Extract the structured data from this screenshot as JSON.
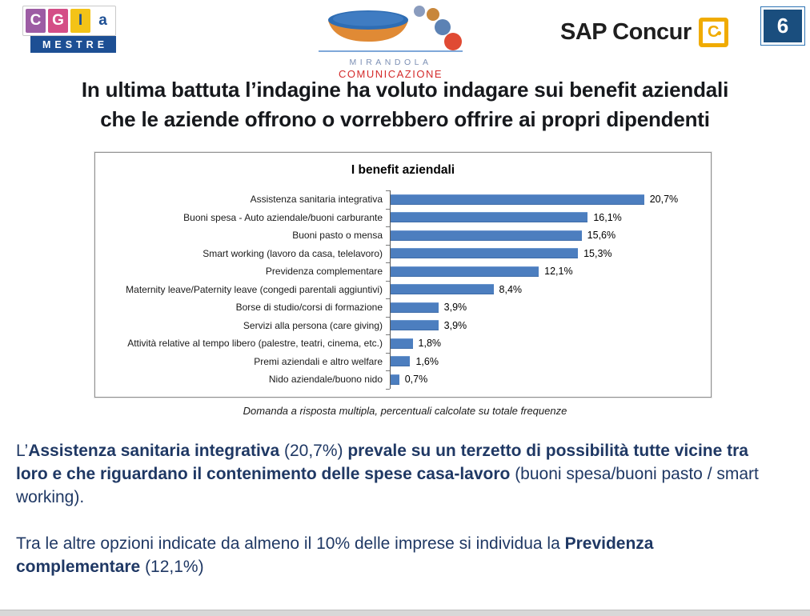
{
  "page": {
    "number": "6"
  },
  "header": {
    "cgia": {
      "letters": [
        {
          "char": "C",
          "bg": "#9d5ca4",
          "fg": "#ffffff"
        },
        {
          "char": "G",
          "bg": "#d44e87",
          "fg": "#ffffff"
        },
        {
          "char": "I",
          "bg": "#f3c317",
          "fg": "#1d4f94"
        },
        {
          "char": "a",
          "bg": "#ffffff",
          "fg": "#1d4f94"
        }
      ],
      "sub": "MESTRE"
    },
    "mirandola": {
      "line1": "MIRANDOLA",
      "line2": "COMUNICAZIONE"
    },
    "sap": {
      "text": "SAP Concur",
      "icon_letter": "C"
    }
  },
  "title": "In ultima battuta l’indagine ha voluto indagare sui benefit aziendali\nche le aziende offrono o vorrebbero offrire ai propri dipendenti",
  "chart_data": {
    "type": "bar",
    "orientation": "horizontal",
    "title": "I benefit aziendali",
    "categories": [
      "Assistenza sanitaria integrativa",
      "Buoni spesa - Auto aziendale/buoni carburante",
      "Buoni pasto o mensa",
      "Smart working (lavoro da casa, telelavoro)",
      "Previdenza complementare",
      "Maternity leave/Paternity leave (congedi parentali aggiuntivi)",
      "Borse di studio/corsi di formazione",
      "Servizi alla persona (care giving)",
      "Attività relative al tempo libero (palestre, teatri, cinema, etc.)",
      "Premi aziendali e altro welfare",
      "Nido aziendale/buono nido"
    ],
    "values": [
      20.7,
      16.1,
      15.6,
      15.3,
      12.1,
      8.4,
      3.9,
      3.9,
      1.8,
      1.6,
      0.7
    ],
    "value_labels": [
      "20,7%",
      "16,1%",
      "15,6%",
      "15,3%",
      "12,1%",
      "8,4%",
      "3,9%",
      "3,9%",
      "1,8%",
      "1,6%",
      "0,7%"
    ],
    "bar_color": "#4c7ebf",
    "xlim": [
      0,
      22
    ],
    "grid": false,
    "legend": "none",
    "data_labels": "outside-end"
  },
  "caption": "Domanda a risposta multipla, percentuali calcolate su totale frequenze",
  "body": {
    "paragraphs": [
      {
        "segments": [
          {
            "text": "L’",
            "bold": false
          },
          {
            "text": "Assistenza sanitaria integrativa",
            "bold": true
          },
          {
            "text": " (20,7%) ",
            "bold": false
          },
          {
            "text": "prevale su un terzetto di possibilità tutte vicine tra loro e che riguardano il contenimento delle spese casa-lavoro",
            "bold": true
          },
          {
            "text": " (buoni spesa/buoni pasto / smart working).",
            "bold": false
          }
        ]
      },
      {
        "segments": [
          {
            "text": "Tra le altre opzioni indicate da almeno il 10% delle imprese si individua la ",
            "bold": false
          },
          {
            "text": "Previdenza complementare",
            "bold": true
          },
          {
            "text": " (12,1%)",
            "bold": false
          }
        ]
      }
    ]
  },
  "colors": {
    "body_text": "#1f3864",
    "bar_blue": "#4c7ebf",
    "navy": "#1d4f94",
    "sap_gold": "#f0ab00",
    "mirandola_red": "#d42b2b"
  }
}
